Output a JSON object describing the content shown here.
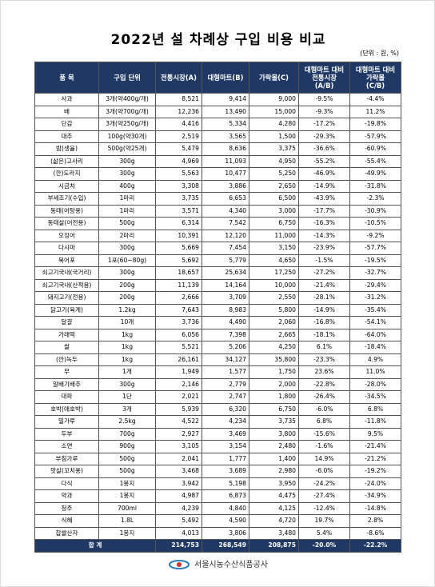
{
  "title": "2022년 설 차례상 구입 비용 비교",
  "unit": "(단위 : 원, %)",
  "table": {
    "header": [
      "품 목",
      "구입 단위",
      "전통시장(A)",
      "대형마트(B)",
      "가락몰(C)",
      "대형마트 대비\n전통시장\n(A/B)",
      "대형마트 대비\n가락몰\n(C/B)"
    ],
    "rows": [
      [
        "사과",
        "3개(약400g/개)",
        "8,521",
        "9,414",
        "9,000",
        "-9.5%",
        "-4.4%"
      ],
      [
        "배",
        "3개(약700g/개)",
        "12,236",
        "13,490",
        "15,000",
        "-9.3%",
        "11.2%"
      ],
      [
        "단감",
        "3개(약250g/개)",
        "4,416",
        "5,334",
        "4,280",
        "-17.2%",
        "-19.8%"
      ],
      [
        "대추",
        "100g(약30개)",
        "2,519",
        "3,565",
        "1,500",
        "-29.3%",
        "-57.9%"
      ],
      [
        "밤(생율)",
        "500g(약25개)",
        "5,479",
        "8,636",
        "3,375",
        "-36.6%",
        "-60.9%"
      ],
      [
        "(삶은)고사리",
        "300g",
        "4,969",
        "11,093",
        "4,950",
        "-55.2%",
        "-55.4%"
      ],
      [
        "(깐)도라지",
        "300g",
        "5,563",
        "10,477",
        "5,250",
        "-46.9%",
        "-49.9%"
      ],
      [
        "시금치",
        "400g",
        "3,308",
        "3,886",
        "2,650",
        "-14.9%",
        "-31.8%"
      ],
      [
        "부세조기(수입)",
        "1마리",
        "3,735",
        "6,653",
        "6,500",
        "-43.9%",
        "-2.3%"
      ],
      [
        "동태(어탕용)",
        "1마리",
        "3,571",
        "4,340",
        "3,000",
        "-17.7%",
        "-30.9%"
      ],
      [
        "동태살(어전용)",
        "500g",
        "6,314",
        "7,542",
        "6,750",
        "-16.3%",
        "-10.5%"
      ],
      [
        "오징어",
        "2마리",
        "10,391",
        "12,120",
        "11,000",
        "-14.3%",
        "-9.2%"
      ],
      [
        "다시마",
        "300g",
        "5,669",
        "7,454",
        "3,150",
        "-23.9%",
        "-57.7%"
      ],
      [
        "북어포",
        "1포(60~80g)",
        "5,692",
        "5,779",
        "4,650",
        "-1.5%",
        "-19.5%"
      ],
      [
        "쇠고기국내(국거리)",
        "300g",
        "18,657",
        "25,634",
        "17,250",
        "-27.2%",
        "-32.7%"
      ],
      [
        "쇠고기국내(산적용)",
        "200g",
        "11,139",
        "14,164",
        "10,000",
        "-21.4%",
        "-29.4%"
      ],
      [
        "돼지고기(전용)",
        "200g",
        "2,666",
        "3,709",
        "2,550",
        "-28.1%",
        "-31.2%"
      ],
      [
        "닭고기(육계)",
        "1.2kg",
        "7,643",
        "8,983",
        "5,800",
        "-14.9%",
        "-35.4%"
      ],
      [
        "달걀",
        "10개",
        "3,736",
        "4,490",
        "2,060",
        "-16.8%",
        "-54.1%"
      ],
      [
        "가래떡",
        "1kg",
        "6,056",
        "7,398",
        "2,665",
        "-18.1%",
        "-64.0%"
      ],
      [
        "쌀",
        "1kg",
        "5,521",
        "5,206",
        "4,250",
        "6.1%",
        "-18.4%"
      ],
      [
        "(깐)녹두",
        "1kg",
        "26,161",
        "34,127",
        "35,800",
        "-23.3%",
        "4.9%"
      ],
      [
        "무",
        "1개",
        "1,949",
        "1,577",
        "1,750",
        "23.6%",
        "11.0%"
      ],
      [
        "알배기배추",
        "300g",
        "2,146",
        "2,779",
        "2,000",
        "-22.8%",
        "-28.0%"
      ],
      [
        "대파",
        "1단",
        "2,021",
        "2,747",
        "1,800",
        "-26.4%",
        "-34.5%"
      ],
      [
        "호박(애호박)",
        "3개",
        "5,939",
        "6,320",
        "6,750",
        "-6.0%",
        "6.8%"
      ],
      [
        "밀가루",
        "2.5kg",
        "4,522",
        "4,234",
        "3,735",
        "6.8%",
        "-11.8%"
      ],
      [
        "두부",
        "700g",
        "2,927",
        "3,469",
        "3,800",
        "-15.6%",
        "9.5%"
      ],
      [
        "소면",
        "900g",
        "3,105",
        "3,154",
        "2,480",
        "-1.6%",
        "-21.4%"
      ],
      [
        "부침가루",
        "500g",
        "2,041",
        "1,777",
        "1,400",
        "14.9%",
        "-21.2%"
      ],
      [
        "맛살(꼬치용)",
        "500g",
        "3,468",
        "3,689",
        "2,980",
        "-6.0%",
        "-19.2%"
      ],
      [
        "다식",
        "1봉지",
        "3,942",
        "5,198",
        "3,950",
        "-24.2%",
        "-24.0%"
      ],
      [
        "약과",
        "1봉지",
        "4,987",
        "6,873",
        "4,475",
        "-27.4%",
        "-34.9%"
      ],
      [
        "청주",
        "700ml",
        "4,239",
        "4,840",
        "4,125",
        "-12.4%",
        "-14.8%"
      ],
      [
        "식혜",
        "1.8L",
        "5,492",
        "4,590",
        "4,720",
        "19.7%",
        "2.8%"
      ],
      [
        "찹쌀산자",
        "1봉지",
        "4,013",
        "3,806",
        "3,480",
        "5.4%",
        "-8.6%"
      ]
    ],
    "total": [
      "합 계",
      "214,753",
      "268,549",
      "208,875",
      "-20.0%",
      "-22.2%"
    ]
  },
  "footer": "서울시농수산식품공사"
}
